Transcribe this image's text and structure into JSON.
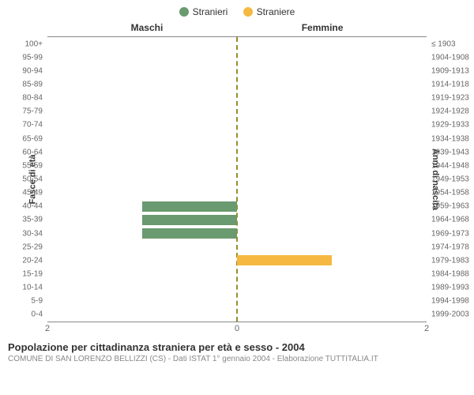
{
  "legend": {
    "items": [
      {
        "label": "Stranieri",
        "color": "#6a9a6f"
      },
      {
        "label": "Straniere",
        "color": "#f5b942"
      }
    ]
  },
  "chart": {
    "type": "bar",
    "title_left": "Maschi",
    "title_right": "Femmine",
    "y_left_axis_label": "Fasce di età",
    "y_right_axis_label": "Anni di nascita",
    "xmax": 2,
    "xticks": [
      2,
      0,
      2
    ],
    "plot_border_color": "#888888",
    "center_line_color": "#9a8a2a",
    "background_color": "#ffffff",
    "bar_color_male": "#6a9a6f",
    "bar_color_female": "#f5b942",
    "label_fontsize": 10,
    "rows": [
      {
        "age": "100+",
        "birth": "≤ 1903",
        "m": 0,
        "f": 0
      },
      {
        "age": "95-99",
        "birth": "1904-1908",
        "m": 0,
        "f": 0
      },
      {
        "age": "90-94",
        "birth": "1909-1913",
        "m": 0,
        "f": 0
      },
      {
        "age": "85-89",
        "birth": "1914-1918",
        "m": 0,
        "f": 0
      },
      {
        "age": "80-84",
        "birth": "1919-1923",
        "m": 0,
        "f": 0
      },
      {
        "age": "75-79",
        "birth": "1924-1928",
        "m": 0,
        "f": 0
      },
      {
        "age": "70-74",
        "birth": "1929-1933",
        "m": 0,
        "f": 0
      },
      {
        "age": "65-69",
        "birth": "1934-1938",
        "m": 0,
        "f": 0
      },
      {
        "age": "60-64",
        "birth": "1939-1943",
        "m": 0,
        "f": 0
      },
      {
        "age": "55-59",
        "birth": "1944-1948",
        "m": 0,
        "f": 0
      },
      {
        "age": "50-54",
        "birth": "1949-1953",
        "m": 0,
        "f": 0
      },
      {
        "age": "45-49",
        "birth": "1954-1958",
        "m": 0,
        "f": 0
      },
      {
        "age": "40-44",
        "birth": "1959-1963",
        "m": 1,
        "f": 0
      },
      {
        "age": "35-39",
        "birth": "1964-1968",
        "m": 1,
        "f": 0
      },
      {
        "age": "30-34",
        "birth": "1969-1973",
        "m": 1,
        "f": 0
      },
      {
        "age": "25-29",
        "birth": "1974-1978",
        "m": 0,
        "f": 0
      },
      {
        "age": "20-24",
        "birth": "1979-1983",
        "m": 0,
        "f": 1
      },
      {
        "age": "15-19",
        "birth": "1984-1988",
        "m": 0,
        "f": 0
      },
      {
        "age": "10-14",
        "birth": "1989-1993",
        "m": 0,
        "f": 0
      },
      {
        "age": "5-9",
        "birth": "1994-1998",
        "m": 0,
        "f": 0
      },
      {
        "age": "0-4",
        "birth": "1999-2003",
        "m": 0,
        "f": 0
      }
    ]
  },
  "footer": {
    "title": "Popolazione per cittadinanza straniera per età e sesso - 2004",
    "subtitle": "COMUNE DI SAN LORENZO BELLIZZI (CS) - Dati ISTAT 1° gennaio 2004 - Elaborazione TUTTITALIA.IT"
  }
}
